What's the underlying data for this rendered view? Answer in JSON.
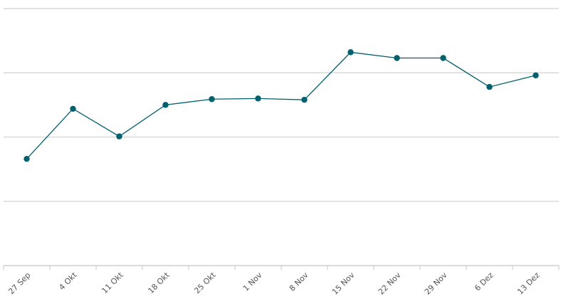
{
  "chart_data": {
    "type": "line",
    "title": "",
    "xlabel": "",
    "ylabel": "",
    "categories": [
      "27 Sep",
      "4 Okt",
      "11 Okt",
      "18 Okt",
      "25 Okt",
      "1 Nov",
      "8 Nov",
      "15 Nov",
      "22 Nov",
      "29 Nov",
      "6 Dez",
      "13 Dez"
    ],
    "series": [
      {
        "values": [
          1.66,
          2.44,
          2.01,
          2.5,
          2.59,
          2.6,
          2.58,
          3.32,
          3.23,
          3.23,
          2.78,
          2.96
        ]
      }
    ],
    "ylim": [
      0,
      4
    ],
    "y_gridlines": [
      1,
      2,
      3,
      4
    ],
    "grid": true,
    "legend": "none",
    "colors": {
      "series": "#00606e",
      "grid": "#d9d9d9",
      "axis": "#cfcfcf",
      "tick_label": "#555555"
    }
  }
}
